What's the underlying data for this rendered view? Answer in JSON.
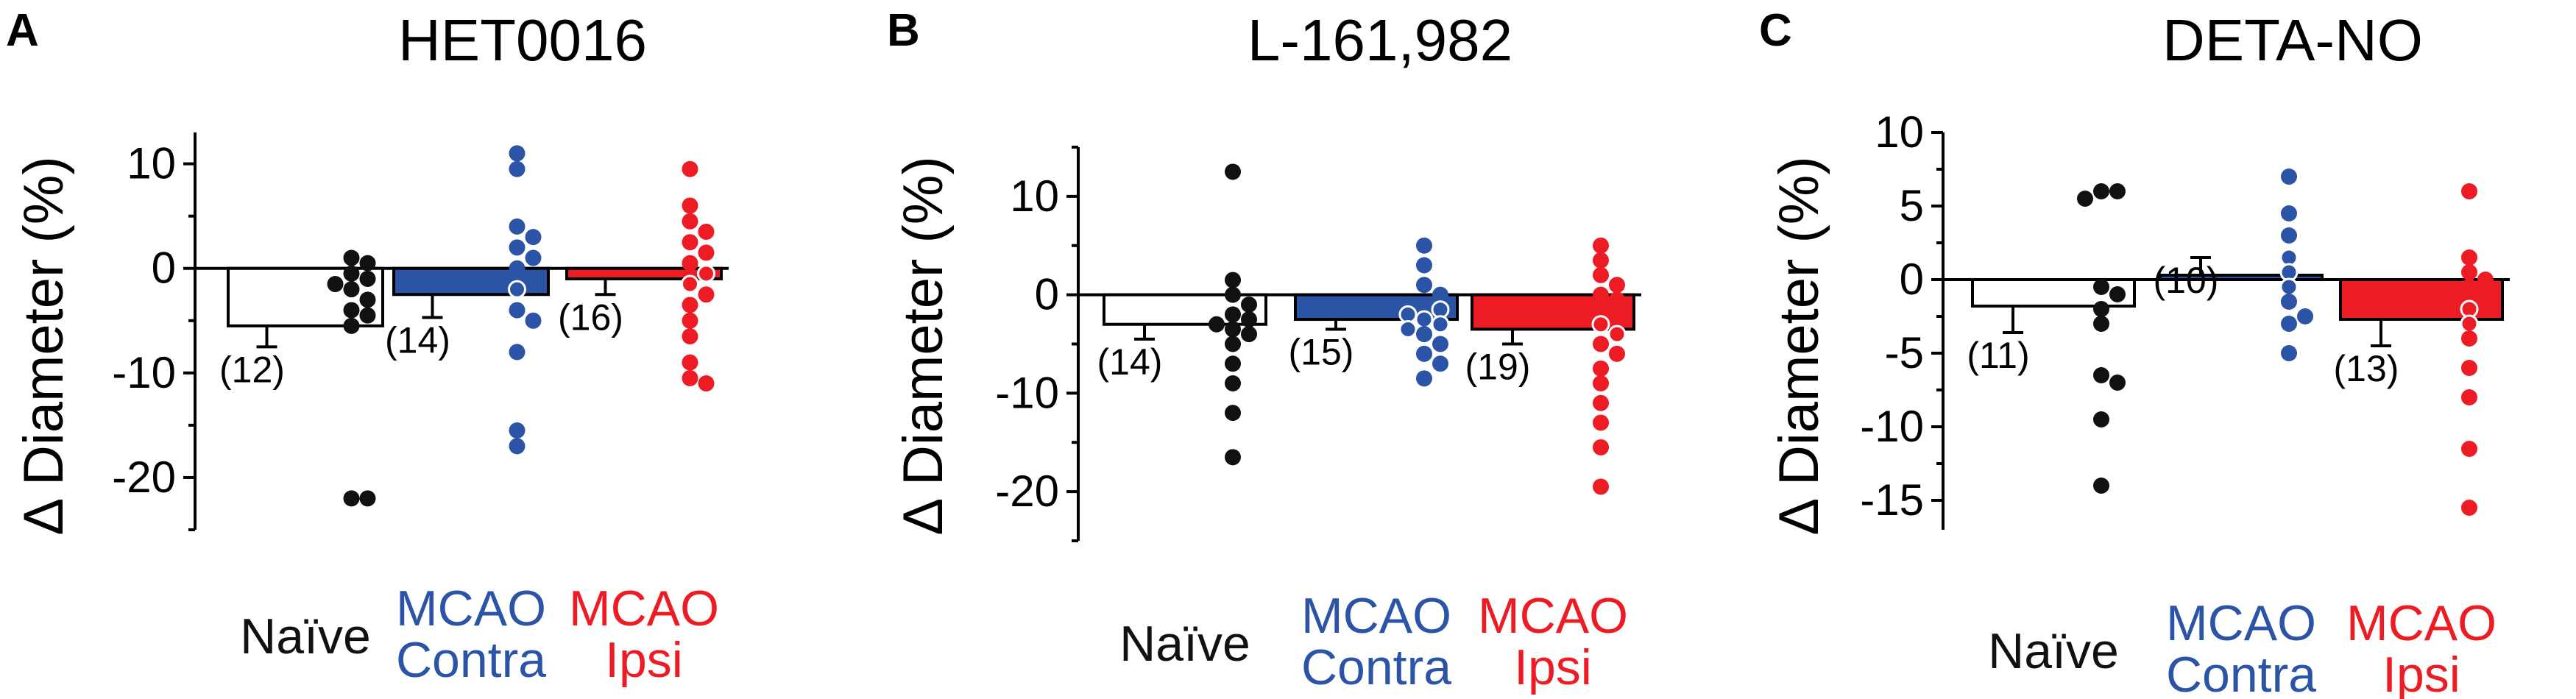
{
  "colors": {
    "naive": "#111111",
    "contra": "#2b53a6",
    "ipsi": "#ed1c24",
    "naive_bar": "#ffffff"
  },
  "chart_data": [
    {
      "type": "bar",
      "panel": "A",
      "title": "HET0016",
      "ylabel": "Δ Diameter (%)",
      "ylim": [
        -25,
        13
      ],
      "yticks": [
        10,
        0,
        -10,
        -20
      ],
      "categories": [
        {
          "label_lines": [
            "Naïve"
          ],
          "color_key": "naive"
        },
        {
          "label_lines": [
            "MCAO",
            "Contra"
          ],
          "color_key": "contra"
        },
        {
          "label_lines": [
            "MCAO",
            "Ipsi"
          ],
          "color_key": "ipsi"
        }
      ],
      "series": [
        {
          "name": "Naïve",
          "mean": -5.5,
          "sem": 2.0,
          "n_label": "(12)",
          "points": [
            1.0,
            0.5,
            -0.5,
            -1.0,
            -1.5,
            -2.0,
            -3.0,
            -4.0,
            -4.5,
            -5.5,
            -22.0,
            -22.0
          ]
        },
        {
          "name": "MCAO Contra",
          "mean": -2.5,
          "sem": 2.2,
          "n_label": "(14)",
          "points": [
            11.0,
            9.5,
            4.0,
            3.0,
            2.0,
            1.0,
            0.0,
            -1.0,
            -2.0,
            -4.0,
            -5.0,
            -8.0,
            -15.5,
            -17.0
          ]
        },
        {
          "name": "MCAO Ipsi",
          "mean": -1.0,
          "sem": 1.5,
          "n_label": "(16)",
          "points": [
            9.5,
            6.0,
            4.5,
            3.5,
            2.5,
            1.5,
            0.5,
            -0.5,
            -1.5,
            -2.5,
            -3.5,
            -5.0,
            -6.5,
            -9.0,
            -10.5,
            -11.0
          ]
        }
      ]
    },
    {
      "type": "bar",
      "panel": "B",
      "title": "L-161,982",
      "ylabel": "Δ Diameter (%)",
      "ylim": [
        -25,
        15
      ],
      "yticks": [
        10,
        0,
        -10,
        -20
      ],
      "categories": [
        {
          "label_lines": [
            "Naïve"
          ],
          "color_key": "naive"
        },
        {
          "label_lines": [
            "MCAO",
            "Contra"
          ],
          "color_key": "contra"
        },
        {
          "label_lines": [
            "MCAO",
            "Ipsi"
          ],
          "color_key": "ipsi"
        }
      ],
      "series": [
        {
          "name": "Naïve",
          "mean": -3.0,
          "sem": 1.5,
          "n_label": "(14)",
          "points": [
            12.5,
            1.5,
            0.0,
            -1.0,
            -2.0,
            -2.5,
            -3.0,
            -3.5,
            -4.0,
            -5.0,
            -7.0,
            -9.0,
            -12.0,
            -16.5
          ]
        },
        {
          "name": "MCAO Contra",
          "mean": -2.5,
          "sem": 1.0,
          "n_label": "(15)",
          "points": [
            5.0,
            3.0,
            1.0,
            0.0,
            -1.0,
            -1.5,
            -2.0,
            -2.5,
            -3.0,
            -3.5,
            -4.0,
            -5.0,
            -6.0,
            -7.0,
            -8.5
          ]
        },
        {
          "name": "MCAO Ipsi",
          "mean": -3.5,
          "sem": 1.5,
          "n_label": "(19)",
          "points": [
            5.0,
            3.5,
            2.0,
            1.0,
            0.0,
            -0.5,
            -1.0,
            -1.5,
            -2.0,
            -3.0,
            -4.0,
            -5.0,
            -6.0,
            -7.5,
            -9.0,
            -11.0,
            -13.0,
            -15.5,
            -19.5
          ]
        }
      ]
    },
    {
      "type": "bar",
      "panel": "C",
      "title": "DETA-NO",
      "ylabel": "Δ Diameter (%)",
      "ylim": [
        -17,
        10
      ],
      "yticks": [
        10,
        5,
        0,
        -5,
        -10,
        -15
      ],
      "categories": [
        {
          "label_lines": [
            "Naïve"
          ],
          "color_key": "naive"
        },
        {
          "label_lines": [
            "MCAO",
            "Contra"
          ],
          "color_key": "contra"
        },
        {
          "label_lines": [
            "MCAO",
            "Ipsi"
          ],
          "color_key": "ipsi"
        }
      ],
      "series": [
        {
          "name": "Naïve",
          "mean": -1.8,
          "sem": 1.8,
          "n_label": "(11)",
          "points": [
            6.0,
            6.0,
            5.5,
            -0.5,
            -1.0,
            -2.0,
            -3.0,
            -6.5,
            -7.0,
            -9.5,
            -14.0
          ]
        },
        {
          "name": "MCAO Contra",
          "mean": 0.3,
          "sem": 1.2,
          "n_label": "(10)",
          "points": [
            7.0,
            4.5,
            3.0,
            1.5,
            0.5,
            -0.5,
            -1.5,
            -2.5,
            -3.0,
            -5.0
          ]
        },
        {
          "name": "MCAO Ipsi",
          "mean": -2.7,
          "sem": 1.8,
          "n_label": "(13)",
          "points": [
            6.0,
            1.5,
            0.5,
            0.0,
            -0.5,
            -1.0,
            -2.0,
            -3.0,
            -4.0,
            -6.0,
            -8.0,
            -11.5,
            -15.5
          ]
        }
      ]
    }
  ]
}
